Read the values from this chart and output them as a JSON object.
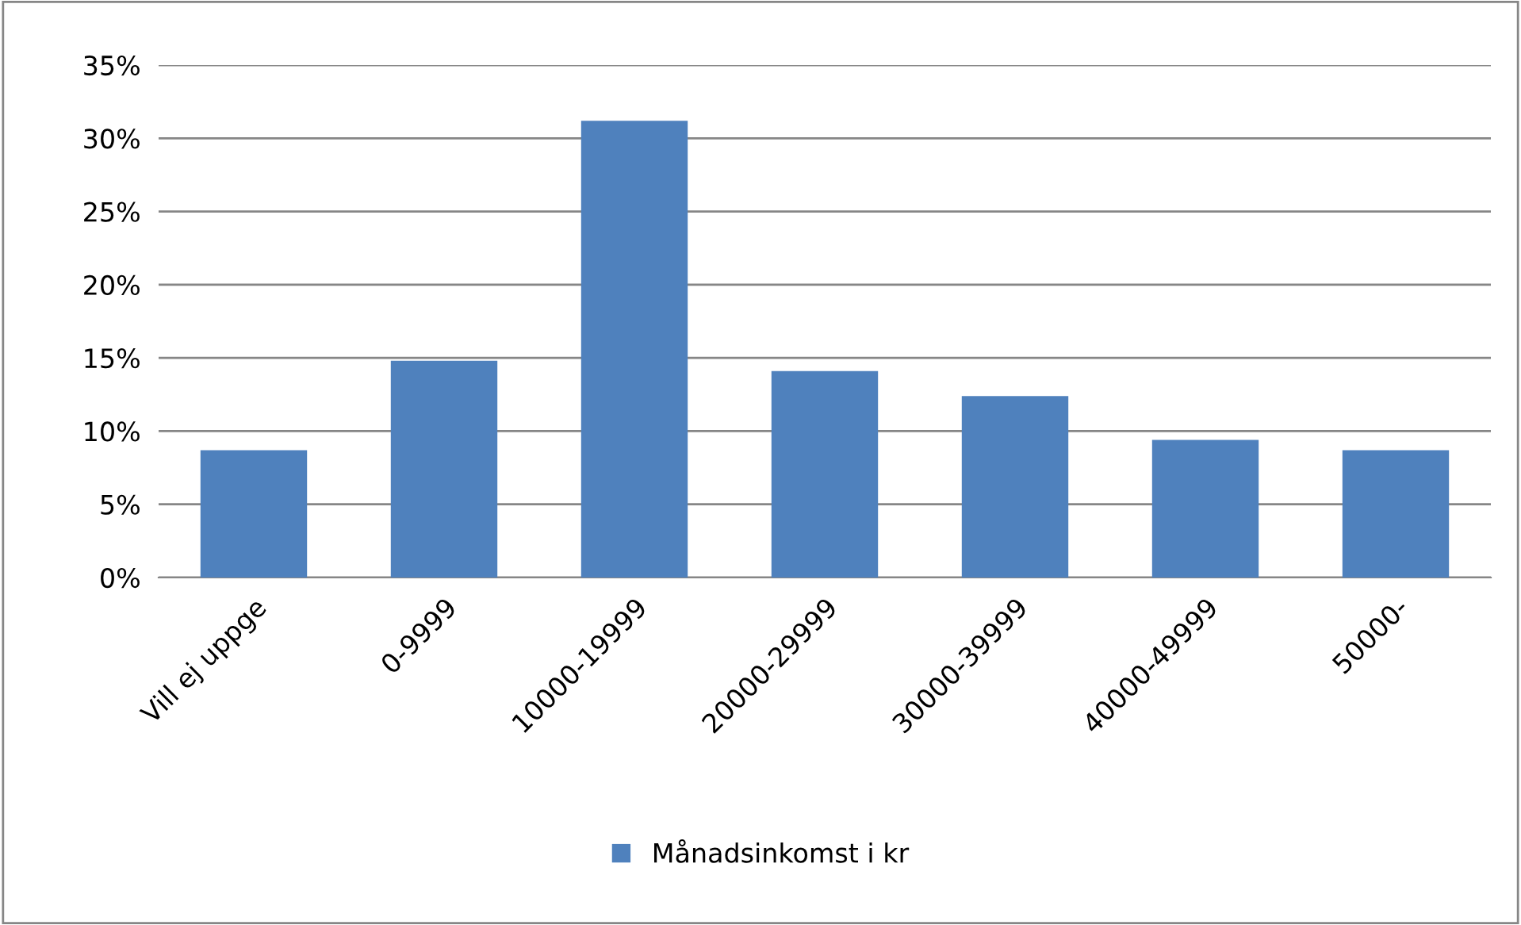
{
  "chart_data": {
    "type": "bar",
    "categories": [
      "Vill ej uppge",
      "0-9999",
      "10000-19999",
      "20000-29999",
      "30000-39999",
      "40000-49999",
      "50000-"
    ],
    "series": [
      {
        "name": "Månadsinkomst i kr",
        "color": "#4f81bd",
        "values": [
          8.7,
          14.8,
          31.2,
          14.1,
          12.4,
          9.4,
          8.7
        ]
      }
    ],
    "ylim": [
      0,
      35
    ],
    "yticks": [
      {
        "value": 0,
        "label": "0%"
      },
      {
        "value": 5,
        "label": "5%"
      },
      {
        "value": 10,
        "label": "10%"
      },
      {
        "value": 15,
        "label": "15%"
      },
      {
        "value": 20,
        "label": "20%"
      },
      {
        "value": 25,
        "label": "25%"
      },
      {
        "value": 30,
        "label": "30%"
      },
      {
        "value": 35,
        "label": "35%"
      }
    ],
    "grid": "y",
    "legend": "bottom"
  }
}
